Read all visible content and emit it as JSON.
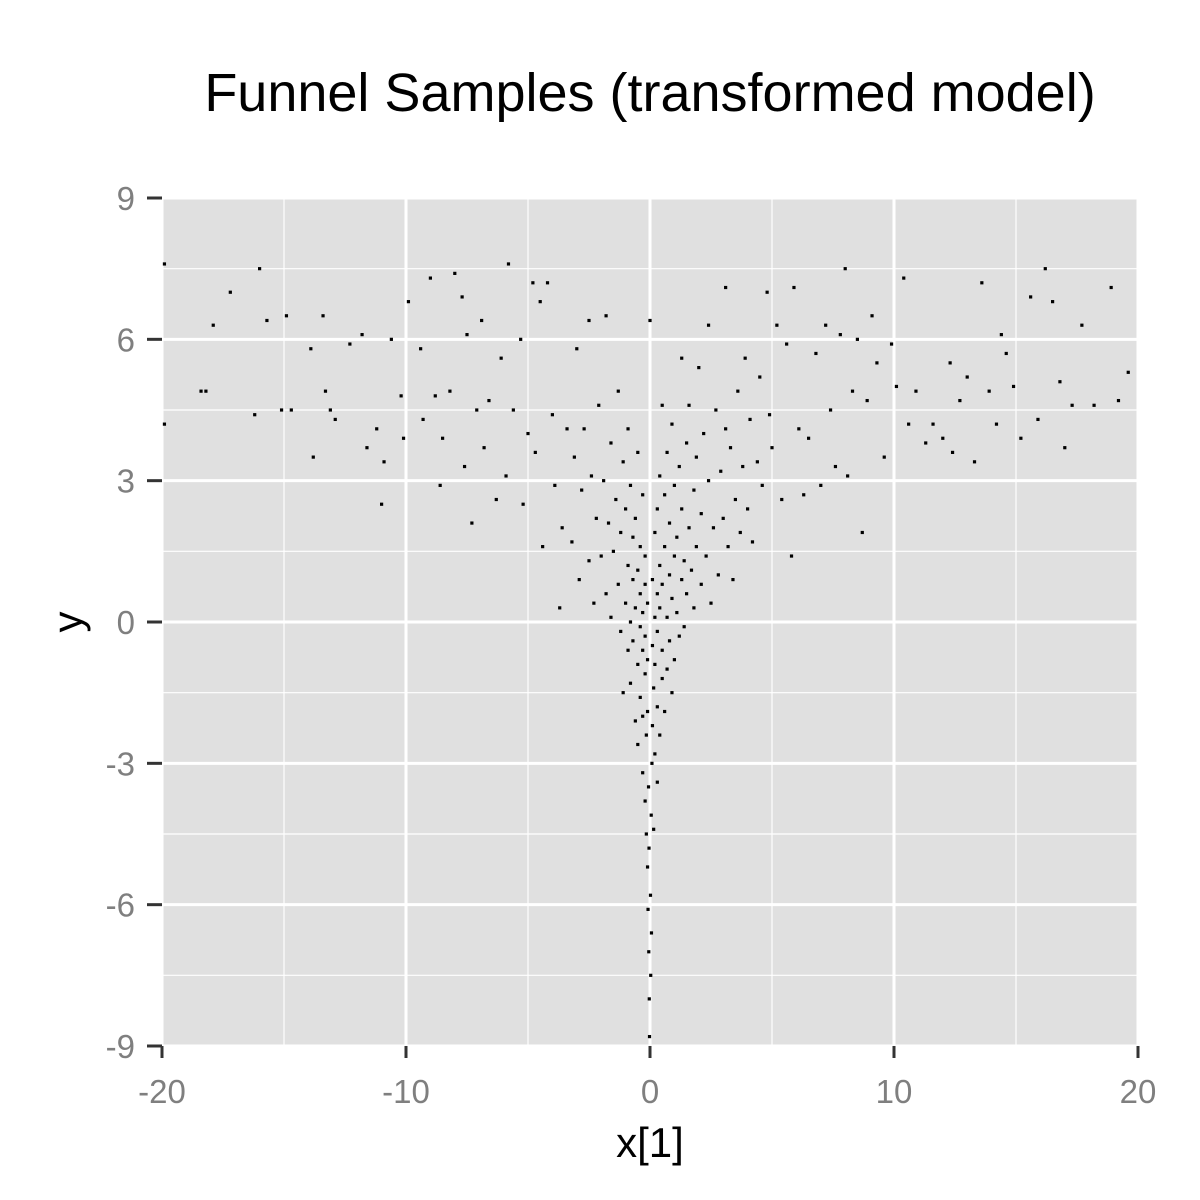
{
  "chart_data": {
    "type": "scatter",
    "title": "Funnel Samples (transformed model)",
    "xlabel": "x[1]",
    "ylabel": "y",
    "xlim": [
      -20,
      20
    ],
    "ylim": [
      -9,
      9
    ],
    "x_ticks": [
      -20,
      -10,
      0,
      10,
      20
    ],
    "y_ticks": [
      -9,
      -6,
      -3,
      0,
      3,
      6,
      9
    ],
    "grid": true,
    "background": "#e0e0e0",
    "grid_color": "#ffffff",
    "point_color": "#000000",
    "points": [
      [
        -19.9,
        7.6
      ],
      [
        -19.9,
        4.2
      ],
      [
        -18.4,
        4.9
      ],
      [
        -18.2,
        4.9
      ],
      [
        -17.9,
        6.3
      ],
      [
        -17.2,
        7.0
      ],
      [
        -16.2,
        4.4
      ],
      [
        -16.0,
        7.5
      ],
      [
        -15.7,
        6.4
      ],
      [
        -15.1,
        4.5
      ],
      [
        -14.9,
        6.5
      ],
      [
        -14.7,
        4.5
      ],
      [
        -13.9,
        5.8
      ],
      [
        -13.8,
        3.5
      ],
      [
        -13.4,
        6.5
      ],
      [
        -13.3,
        4.9
      ],
      [
        -13.1,
        4.5
      ],
      [
        -12.9,
        4.3
      ],
      [
        -12.3,
        5.9
      ],
      [
        -11.8,
        6.1
      ],
      [
        -11.6,
        3.7
      ],
      [
        -11.2,
        4.1
      ],
      [
        -11.0,
        2.5
      ],
      [
        -10.9,
        3.4
      ],
      [
        -10.6,
        6.0
      ],
      [
        -10.2,
        4.8
      ],
      [
        -10.1,
        3.9
      ],
      [
        -9.9,
        6.8
      ],
      [
        -9.4,
        5.8
      ],
      [
        -9.3,
        4.3
      ],
      [
        -9.0,
        7.3
      ],
      [
        -8.8,
        4.8
      ],
      [
        -8.6,
        2.9
      ],
      [
        -8.5,
        3.9
      ],
      [
        -8.2,
        4.9
      ],
      [
        -8.0,
        7.4
      ],
      [
        -7.7,
        6.9
      ],
      [
        -7.6,
        3.3
      ],
      [
        -7.5,
        6.1
      ],
      [
        -7.3,
        2.1
      ],
      [
        -7.1,
        4.5
      ],
      [
        -6.9,
        6.4
      ],
      [
        -6.8,
        3.7
      ],
      [
        -6.6,
        4.7
      ],
      [
        -6.3,
        2.6
      ],
      [
        -6.1,
        5.6
      ],
      [
        -5.9,
        3.1
      ],
      [
        -5.8,
        7.6
      ],
      [
        -5.6,
        4.5
      ],
      [
        -5.3,
        6.0
      ],
      [
        -5.2,
        2.5
      ],
      [
        -5.0,
        4.0
      ],
      [
        -4.8,
        7.2
      ],
      [
        -4.7,
        3.6
      ],
      [
        -4.5,
        6.8
      ],
      [
        -4.4,
        1.6
      ],
      [
        -4.2,
        7.2
      ],
      [
        -4.0,
        4.4
      ],
      [
        -3.9,
        2.9
      ],
      [
        -3.7,
        0.3
      ],
      [
        -3.6,
        2.0
      ],
      [
        -3.4,
        4.1
      ],
      [
        -3.2,
        1.7
      ],
      [
        -3.1,
        3.5
      ],
      [
        -3.0,
        5.8
      ],
      [
        -2.9,
        0.9
      ],
      [
        -2.8,
        2.8
      ],
      [
        -2.7,
        4.1
      ],
      [
        -2.5,
        1.3
      ],
      [
        -2.5,
        6.4
      ],
      [
        -2.4,
        3.1
      ],
      [
        -2.3,
        0.4
      ],
      [
        -2.2,
        2.2
      ],
      [
        -2.1,
        4.6
      ],
      [
        -2.0,
        1.4
      ],
      [
        -1.9,
        3.0
      ],
      [
        -1.8,
        0.6
      ],
      [
        -1.8,
        6.5
      ],
      [
        -1.7,
        2.1
      ],
      [
        -1.6,
        0.1
      ],
      [
        -1.6,
        3.8
      ],
      [
        -1.5,
        1.5
      ],
      [
        -1.4,
        2.6
      ],
      [
        -1.3,
        0.8
      ],
      [
        -1.3,
        4.9
      ],
      [
        -1.2,
        -0.2
      ],
      [
        -1.2,
        1.9
      ],
      [
        -1.1,
        3.4
      ],
      [
        -1.1,
        -1.5
      ],
      [
        -1.0,
        0.4
      ],
      [
        -1.0,
        2.4
      ],
      [
        -0.9,
        -0.6
      ],
      [
        -0.9,
        1.2
      ],
      [
        -0.9,
        4.1
      ],
      [
        -0.8,
        0.0
      ],
      [
        -0.8,
        2.9
      ],
      [
        -0.8,
        -1.3
      ],
      [
        -0.7,
        0.9
      ],
      [
        -0.7,
        1.8
      ],
      [
        -0.7,
        -0.4
      ],
      [
        -0.6,
        -2.1
      ],
      [
        -0.6,
        0.3
      ],
      [
        -0.6,
        2.2
      ],
      [
        -0.5,
        -0.9
      ],
      [
        -0.5,
        1.1
      ],
      [
        -0.5,
        3.6
      ],
      [
        -0.5,
        -2.6
      ],
      [
        -0.4,
        -0.1
      ],
      [
        -0.4,
        0.6
      ],
      [
        -0.4,
        -1.6
      ],
      [
        -0.4,
        1.6
      ],
      [
        -0.3,
        -3.2
      ],
      [
        -0.3,
        -0.6
      ],
      [
        -0.3,
        0.2
      ],
      [
        -0.3,
        2.7
      ],
      [
        -0.3,
        -2.0
      ],
      [
        -0.2,
        -1.1
      ],
      [
        -0.2,
        0.8
      ],
      [
        -0.2,
        -3.8
      ],
      [
        -0.2,
        -0.3
      ],
      [
        -0.2,
        1.4
      ],
      [
        -0.15,
        -4.5
      ],
      [
        -0.15,
        -2.4
      ],
      [
        -0.1,
        -0.8
      ],
      [
        -0.1,
        0.4
      ],
      [
        -0.1,
        -5.2
      ],
      [
        -0.1,
        -1.9
      ],
      [
        -0.08,
        -6.1
      ],
      [
        -0.06,
        -3.5
      ],
      [
        -0.05,
        -7.0
      ],
      [
        -0.04,
        -4.8
      ],
      [
        -0.03,
        -8.0
      ],
      [
        -0.02,
        -8.8
      ],
      [
        0.0,
        6.4
      ],
      [
        0.02,
        -5.8
      ],
      [
        0.03,
        -7.5
      ],
      [
        0.05,
        -4.1
      ],
      [
        0.06,
        -6.6
      ],
      [
        0.08,
        -3.0
      ],
      [
        0.1,
        -2.2
      ],
      [
        0.1,
        -0.5
      ],
      [
        0.1,
        0.9
      ],
      [
        0.15,
        -1.4
      ],
      [
        0.15,
        -4.4
      ],
      [
        0.2,
        0.1
      ],
      [
        0.2,
        1.9
      ],
      [
        0.2,
        -2.8
      ],
      [
        0.2,
        -0.9
      ],
      [
        0.3,
        0.6
      ],
      [
        0.3,
        -3.4
      ],
      [
        0.3,
        -1.8
      ],
      [
        0.3,
        2.4
      ],
      [
        0.3,
        -0.2
      ],
      [
        0.4,
        1.2
      ],
      [
        0.4,
        -2.4
      ],
      [
        0.4,
        0.3
      ],
      [
        0.4,
        3.1
      ],
      [
        0.5,
        -1.2
      ],
      [
        0.5,
        0.8
      ],
      [
        0.5,
        -0.6
      ],
      [
        0.5,
        4.6
      ],
      [
        0.6,
        1.6
      ],
      [
        0.6,
        -1.9
      ],
      [
        0.6,
        2.7
      ],
      [
        0.7,
        0.1
      ],
      [
        0.7,
        -1.0
      ],
      [
        0.7,
        3.6
      ],
      [
        0.8,
        1.0
      ],
      [
        0.8,
        -0.4
      ],
      [
        0.8,
        2.1
      ],
      [
        0.9,
        -1.5
      ],
      [
        0.9,
        0.5
      ],
      [
        0.9,
        4.2
      ],
      [
        1.0,
        1.4
      ],
      [
        1.0,
        -0.8
      ],
      [
        1.0,
        2.9
      ],
      [
        1.1,
        0.2
      ],
      [
        1.1,
        1.8
      ],
      [
        1.2,
        -0.3
      ],
      [
        1.2,
        3.3
      ],
      [
        1.3,
        0.9
      ],
      [
        1.3,
        2.4
      ],
      [
        1.3,
        5.6
      ],
      [
        1.4,
        -0.1
      ],
      [
        1.4,
        1.3
      ],
      [
        1.5,
        3.8
      ],
      [
        1.5,
        0.6
      ],
      [
        1.6,
        2.0
      ],
      [
        1.6,
        4.6
      ],
      [
        1.7,
        1.1
      ],
      [
        1.8,
        2.8
      ],
      [
        1.8,
        0.3
      ],
      [
        1.9,
        1.6
      ],
      [
        1.9,
        3.5
      ],
      [
        2.0,
        5.4
      ],
      [
        2.1,
        0.8
      ],
      [
        2.1,
        2.3
      ],
      [
        2.2,
        4.0
      ],
      [
        2.3,
        1.4
      ],
      [
        2.4,
        6.3
      ],
      [
        2.4,
        3.0
      ],
      [
        2.5,
        0.4
      ],
      [
        2.6,
        2.0
      ],
      [
        2.7,
        4.5
      ],
      [
        2.8,
        1.0
      ],
      [
        2.9,
        3.2
      ],
      [
        3.0,
        2.2
      ],
      [
        3.1,
        7.1
      ],
      [
        3.1,
        4.1
      ],
      [
        3.2,
        1.6
      ],
      [
        3.3,
        3.7
      ],
      [
        3.4,
        0.9
      ],
      [
        3.5,
        2.6
      ],
      [
        3.6,
        4.9
      ],
      [
        3.7,
        1.9
      ],
      [
        3.8,
        3.3
      ],
      [
        3.9,
        5.6
      ],
      [
        4.0,
        2.4
      ],
      [
        4.1,
        4.3
      ],
      [
        4.2,
        1.7
      ],
      [
        4.4,
        3.4
      ],
      [
        4.5,
        5.2
      ],
      [
        4.6,
        2.9
      ],
      [
        4.8,
        7.0
      ],
      [
        4.9,
        4.4
      ],
      [
        5.0,
        3.7
      ],
      [
        5.2,
        6.3
      ],
      [
        5.4,
        2.6
      ],
      [
        5.6,
        5.9
      ],
      [
        5.8,
        1.4
      ],
      [
        5.9,
        7.1
      ],
      [
        6.1,
        4.1
      ],
      [
        6.3,
        2.7
      ],
      [
        6.5,
        3.9
      ],
      [
        6.8,
        5.7
      ],
      [
        7.0,
        2.9
      ],
      [
        7.2,
        6.3
      ],
      [
        7.4,
        4.5
      ],
      [
        7.6,
        3.3
      ],
      [
        7.8,
        6.1
      ],
      [
        8.0,
        7.5
      ],
      [
        8.1,
        3.1
      ],
      [
        8.3,
        4.9
      ],
      [
        8.5,
        6.0
      ],
      [
        8.7,
        1.9
      ],
      [
        8.9,
        4.7
      ],
      [
        9.1,
        6.5
      ],
      [
        9.3,
        5.5
      ],
      [
        9.6,
        3.5
      ],
      [
        9.9,
        5.9
      ],
      [
        10.1,
        5.0
      ],
      [
        10.4,
        7.3
      ],
      [
        10.6,
        4.2
      ],
      [
        10.9,
        4.9
      ],
      [
        11.3,
        3.8
      ],
      [
        11.6,
        4.2
      ],
      [
        12.0,
        3.9
      ],
      [
        12.3,
        5.5
      ],
      [
        12.4,
        3.6
      ],
      [
        12.7,
        4.7
      ],
      [
        13.0,
        5.2
      ],
      [
        13.3,
        3.4
      ],
      [
        13.6,
        7.2
      ],
      [
        13.9,
        4.9
      ],
      [
        14.2,
        4.2
      ],
      [
        14.4,
        6.1
      ],
      [
        14.6,
        5.7
      ],
      [
        14.9,
        5.0
      ],
      [
        15.2,
        3.9
      ],
      [
        15.6,
        6.9
      ],
      [
        15.9,
        4.3
      ],
      [
        16.2,
        7.5
      ],
      [
        16.5,
        6.8
      ],
      [
        16.8,
        5.1
      ],
      [
        17.0,
        3.7
      ],
      [
        17.3,
        4.6
      ],
      [
        17.7,
        6.3
      ],
      [
        18.2,
        4.6
      ],
      [
        18.9,
        7.1
      ],
      [
        19.2,
        4.7
      ],
      [
        19.6,
        5.3
      ]
    ]
  }
}
